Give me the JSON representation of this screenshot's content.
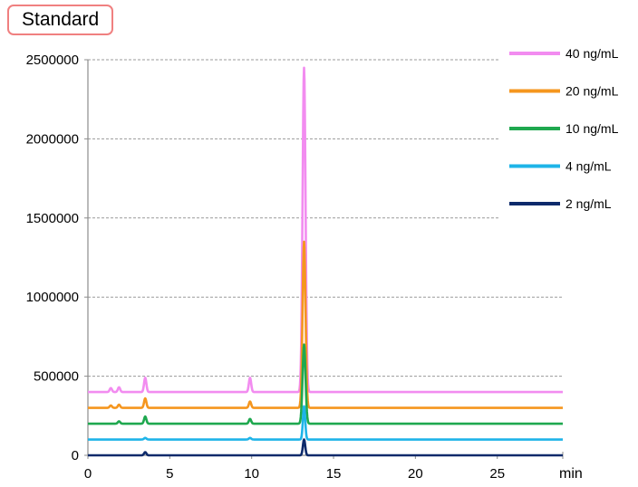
{
  "chart_data": {
    "type": "line",
    "title": "Standard",
    "xlabel": "min",
    "ylabel": "",
    "xlim": [
      0,
      29
    ],
    "ylim": [
      0,
      2500000
    ],
    "x_ticks": [
      0,
      5,
      10,
      15,
      20,
      25
    ],
    "y_ticks": [
      0,
      500000,
      1000000,
      1500000,
      2000000,
      2500000
    ],
    "grid": "horizontal dashed",
    "legend_position": "right",
    "series": [
      {
        "name": "40 ng/mL",
        "color": "#f28cf0",
        "baseline": 400000,
        "peaks": [
          {
            "x": 1.4,
            "height": 25000
          },
          {
            "x": 1.9,
            "height": 30000
          },
          {
            "x": 3.5,
            "height": 90000
          },
          {
            "x": 9.9,
            "height": 90000
          },
          {
            "x": 13.2,
            "height": 2050000
          }
        ]
      },
      {
        "name": "20 ng/mL",
        "color": "#f5961e",
        "baseline": 300000,
        "peaks": [
          {
            "x": 1.4,
            "height": 15000
          },
          {
            "x": 1.9,
            "height": 20000
          },
          {
            "x": 3.5,
            "height": 60000
          },
          {
            "x": 9.9,
            "height": 40000
          },
          {
            "x": 13.2,
            "height": 1050000
          }
        ]
      },
      {
        "name": "10 ng/mL",
        "color": "#1fa84f",
        "baseline": 200000,
        "peaks": [
          {
            "x": 1.9,
            "height": 15000
          },
          {
            "x": 3.5,
            "height": 45000
          },
          {
            "x": 9.9,
            "height": 30000
          },
          {
            "x": 13.2,
            "height": 500000
          }
        ]
      },
      {
        "name": "4 ng/mL",
        "color": "#1eb4e8",
        "baseline": 100000,
        "peaks": [
          {
            "x": 3.5,
            "height": 10000
          },
          {
            "x": 9.9,
            "height": 10000
          },
          {
            "x": 13.2,
            "height": 210000
          }
        ]
      },
      {
        "name": "2 ng/mL",
        "color": "#0d2a6b",
        "baseline": 0,
        "peaks": [
          {
            "x": 3.5,
            "height": 20000
          },
          {
            "x": 13.2,
            "height": 100000
          }
        ]
      }
    ]
  }
}
